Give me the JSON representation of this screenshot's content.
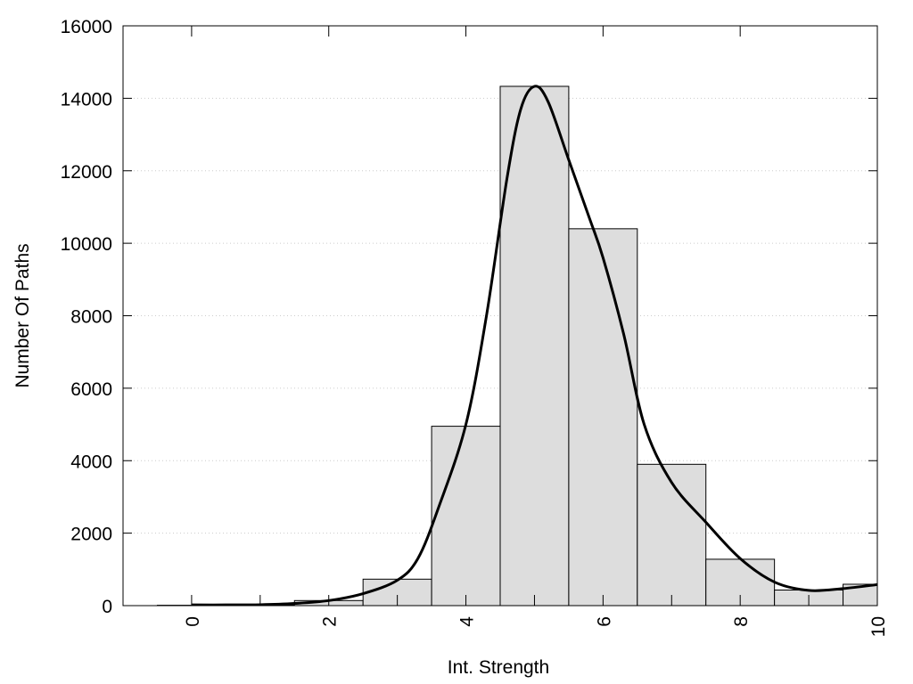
{
  "chart_data": {
    "type": "bar",
    "title": "",
    "xlabel": "Int. Strength",
    "ylabel": "Number Of Paths",
    "xlim": [
      -1,
      10
    ],
    "ylim": [
      0,
      16000
    ],
    "x_ticks": [
      0,
      2,
      4,
      6,
      8,
      10
    ],
    "x_tick_labels": [
      "0",
      "2",
      "4",
      "6",
      "8",
      "10"
    ],
    "y_ticks": [
      0,
      2000,
      4000,
      6000,
      8000,
      10000,
      12000,
      14000,
      16000
    ],
    "y_tick_labels": [
      "0",
      "2000",
      "4000",
      "6000",
      "8000",
      "10000",
      "12000",
      "14000",
      "16000"
    ],
    "grid": "horizontal-dotted",
    "bar_color": "#dddddd",
    "bins": [
      {
        "x0": -0.5,
        "x1": 0.5,
        "value": 10
      },
      {
        "x0": 0.5,
        "x1": 1.5,
        "value": 20
      },
      {
        "x0": 1.5,
        "x1": 2.5,
        "value": 140
      },
      {
        "x0": 2.5,
        "x1": 3.5,
        "value": 730
      },
      {
        "x0": 3.5,
        "x1": 4.5,
        "value": 4950
      },
      {
        "x0": 4.5,
        "x1": 5.5,
        "value": 14330
      },
      {
        "x0": 5.5,
        "x1": 6.5,
        "value": 10400
      },
      {
        "x0": 6.5,
        "x1": 7.5,
        "value": 3900
      },
      {
        "x0": 7.5,
        "x1": 8.5,
        "value": 1280
      },
      {
        "x0": 8.5,
        "x1": 9.5,
        "value": 430
      },
      {
        "x0": 9.5,
        "x1": 10.5,
        "value": 590
      }
    ],
    "curve": {
      "x": [
        0,
        0.5,
        1,
        1.5,
        2,
        2.5,
        3,
        3.3,
        3.6,
        4,
        4.3,
        4.6,
        4.8,
        5,
        5.2,
        5.5,
        5.8,
        6,
        6.3,
        6.6,
        7,
        7.5,
        8,
        8.5,
        9,
        9.5,
        10
      ],
      "y": [
        20,
        20,
        25,
        60,
        140,
        330,
        700,
        1300,
        2700,
        5000,
        8000,
        11800,
        13700,
        14330,
        13900,
        12300,
        10700,
        9600,
        7500,
        5000,
        3400,
        2300,
        1300,
        650,
        420,
        470,
        580
      ]
    }
  }
}
